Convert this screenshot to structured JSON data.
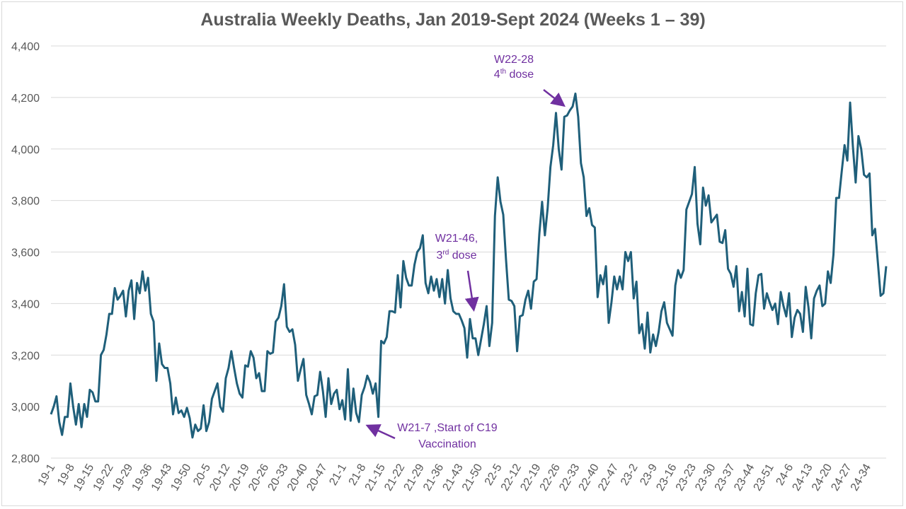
{
  "chart_data": {
    "type": "line",
    "title": "Australia Weekly Deaths, Jan 2019-Sept 2024 (Weeks 1 – 39)",
    "xlabel": "",
    "ylabel": "",
    "ylim": [
      2800,
      4400
    ],
    "yticks": [
      2800,
      3000,
      3200,
      3400,
      3600,
      3800,
      4000,
      4200,
      4400
    ],
    "ytick_labels": [
      "2,800",
      "3,000",
      "3,200",
      "3,400",
      "3,600",
      "3,800",
      "4,000",
      "4,200",
      "4,400"
    ],
    "xtick_labels": [
      "19-1",
      "19-8",
      "19-15",
      "19-22",
      "19-29",
      "19-36",
      "19-43",
      "19-50",
      "20-5",
      "20-12",
      "20-19",
      "20-26",
      "20-33",
      "20-40",
      "20-47",
      "21-1",
      "21-8",
      "21-15",
      "21-22",
      "21-29",
      "21-36",
      "21-43",
      "21-50",
      "22-5",
      "22-12",
      "22-19",
      "22-26",
      "22-33",
      "22-40",
      "22-47",
      "23-2",
      "23-9",
      "23-16",
      "23-23",
      "23-30",
      "23-37",
      "23-44",
      "23-51",
      "24-6",
      "24-13",
      "24-20",
      "24-27",
      "24-34"
    ],
    "grid": true,
    "line_color": "#1f5f7a",
    "annotation_color": "#7030a0",
    "series": [
      {
        "values": [
          2970,
          3000,
          3040,
          2940,
          2890,
          2960,
          2960,
          3090,
          3000,
          2930,
          3010,
          2920,
          3010,
          2960,
          3065,
          3055,
          3020,
          3020,
          3200,
          3220,
          3280,
          3360,
          3360,
          3460,
          3415,
          3430,
          3450,
          3350,
          3450,
          3490,
          3340,
          3480,
          3440,
          3525,
          3450,
          3500,
          3360,
          3330,
          3100,
          3245,
          3165,
          3150,
          3150,
          3090,
          2970,
          3035,
          2975,
          2985,
          2960,
          2995,
          2955,
          2880,
          2930,
          2905,
          2915,
          3005,
          2905,
          2940,
          3030,
          3060,
          3090,
          3000,
          2980,
          3110,
          3150,
          3215,
          3150,
          3090,
          3050,
          3035,
          3160,
          3155,
          3215,
          3190,
          3110,
          3130,
          3060,
          3060,
          3215,
          3205,
          3210,
          3330,
          3345,
          3390,
          3475,
          3310,
          3290,
          3300,
          3240,
          3100,
          3145,
          3185,
          3045,
          3010,
          2970,
          3040,
          3045,
          3135,
          3060,
          2960,
          3110,
          3010,
          3050,
          3065,
          2990,
          3025,
          2950,
          3145,
          2945,
          3070,
          2975,
          2940,
          3045,
          3075,
          3120,
          3095,
          3050,
          3090,
          2960,
          3255,
          3245,
          3270,
          3370,
          3370,
          3365,
          3510,
          3385,
          3565,
          3500,
          3470,
          3470,
          3550,
          3600,
          3615,
          3665,
          3480,
          3440,
          3505,
          3450,
          3495,
          3425,
          3495,
          3400,
          3530,
          3420,
          3370,
          3360,
          3360,
          3335,
          3305,
          3190,
          3340,
          3265,
          3265,
          3200,
          3260,
          3320,
          3390,
          3235,
          3325,
          3740,
          3890,
          3795,
          3745,
          3570,
          3415,
          3410,
          3390,
          3215,
          3350,
          3355,
          3415,
          3450,
          3380,
          3485,
          3495,
          3670,
          3795,
          3665,
          3770,
          3930,
          4015,
          4140,
          4000,
          3920,
          4125,
          4130,
          4150,
          4165,
          4215,
          4125,
          3945,
          3890,
          3740,
          3770,
          3705,
          3695,
          3425,
          3510,
          3475,
          3545,
          3325,
          3405,
          3505,
          3455,
          3505,
          3455,
          3600,
          3565,
          3600,
          3420,
          3485,
          3285,
          3320,
          3225,
          3365,
          3210,
          3280,
          3235,
          3290,
          3370,
          3405,
          3325,
          3300,
          3275,
          3470,
          3530,
          3500,
          3530,
          3765,
          3795,
          3825,
          3930,
          3710,
          3630,
          3850,
          3780,
          3820,
          3715,
          3730,
          3745,
          3640,
          3635,
          3685,
          3535,
          3515,
          3465,
          3545,
          3370,
          3445,
          3350,
          3535,
          3320,
          3315,
          3440,
          3510,
          3515,
          3380,
          3440,
          3405,
          3375,
          3400,
          3320,
          3445,
          3390,
          3350,
          3440,
          3270,
          3345,
          3375,
          3360,
          3290,
          3465,
          3385,
          3265,
          3420,
          3450,
          3470,
          3390,
          3400,
          3525,
          3480,
          3590,
          3810,
          3810,
          3915,
          4015,
          3955,
          4180,
          4010,
          3870,
          4050,
          4000,
          3900,
          3890,
          3905,
          3665,
          3690,
          3560,
          3430,
          3440,
          3545
        ]
      }
    ],
    "annotations": [
      {
        "line1": "W22-28",
        "line2_pre": "4",
        "line2_sup": "th",
        "line2_post": " dose"
      },
      {
        "line1": "W21-46,",
        "line2_pre": "3",
        "line2_sup": "rd",
        "line2_post": " dose"
      },
      {
        "line1": "W21-7 ,Start of C19",
        "line2_pre": "Vaccination",
        "line2_sup": "",
        "line2_post": ""
      }
    ]
  }
}
